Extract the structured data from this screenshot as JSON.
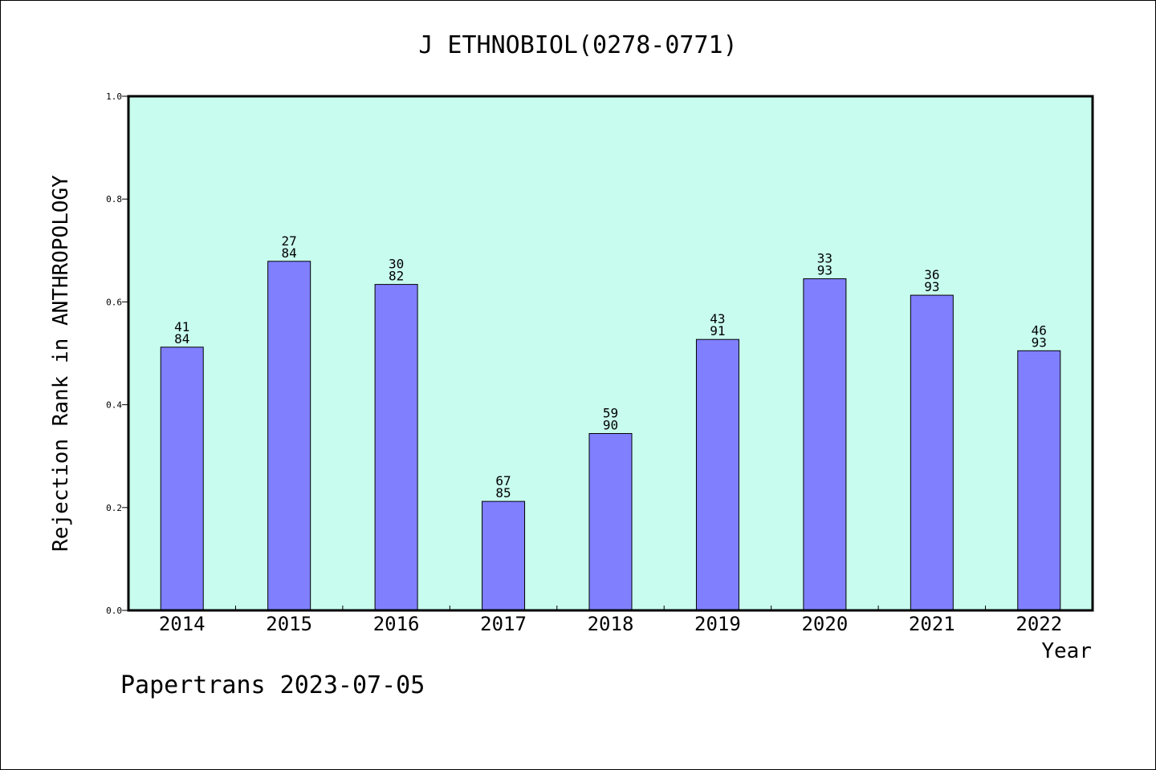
{
  "chart_data": {
    "type": "bar",
    "title": "J ETHNOBIOL(0278-0771)",
    "xlabel": "Year",
    "ylabel": "Rejection Rank in ANTHROPOLOGY",
    "categories": [
      "2014",
      "2015",
      "2016",
      "2017",
      "2018",
      "2019",
      "2020",
      "2021",
      "2022"
    ],
    "values": [
      0.512,
      0.679,
      0.634,
      0.212,
      0.344,
      0.527,
      0.645,
      0.613,
      0.505
    ],
    "labels_top": [
      "41",
      "27",
      "30",
      "67",
      "59",
      "43",
      "33",
      "36",
      "46"
    ],
    "labels_bottom": [
      "84",
      "84",
      "82",
      "85",
      "90",
      "91",
      "93",
      "93",
      "93"
    ],
    "ylim": [
      0,
      1.0
    ],
    "yticks": [
      "0.0",
      "0.2",
      "0.4",
      "0.6",
      "0.8",
      "1.0"
    ],
    "grid": false,
    "legend": "none",
    "colors": {
      "bar": "#8080ff",
      "plot_bg": "#c8fcee",
      "axis": "#000000"
    }
  },
  "footer": {
    "credit": "Papertrans 2023-07-05"
  }
}
